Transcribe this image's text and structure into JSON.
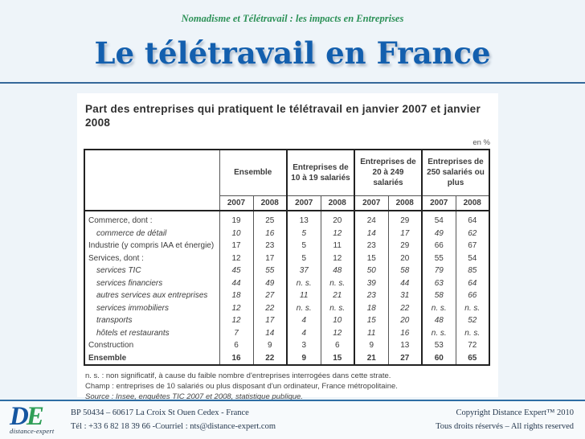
{
  "slide": {
    "subtitle": "Nomadisme et Télétravail : les impacts en Entreprises",
    "title": "Le télétravail en France"
  },
  "table_panel": {
    "title": "Part des entreprises qui pratiquent le télétravail en janvier 2007 et janvier 2008",
    "unit": "en %",
    "groups": [
      {
        "label": "Ensemble"
      },
      {
        "label": "Entreprises de 10 à 19 salariés"
      },
      {
        "label": "Entreprises de 20 à 249 salariés"
      },
      {
        "label": "Entreprises de 250 salariés ou plus"
      }
    ],
    "year_labels": [
      "2007",
      "2008"
    ],
    "rows": [
      {
        "label": "Commerce, dont :",
        "style": "normal",
        "values": [
          "19",
          "25",
          "13",
          "20",
          "24",
          "29",
          "54",
          "64"
        ]
      },
      {
        "label": "commerce de détail",
        "style": "italic",
        "values": [
          "10",
          "16",
          "5",
          "12",
          "14",
          "17",
          "49",
          "62"
        ]
      },
      {
        "label": "Industrie (y compris IAA et énergie)",
        "style": "normal",
        "values": [
          "17",
          "23",
          "5",
          "11",
          "23",
          "29",
          "66",
          "67"
        ]
      },
      {
        "label": "Services, dont :",
        "style": "normal",
        "values": [
          "12",
          "17",
          "5",
          "12",
          "15",
          "20",
          "55",
          "54"
        ]
      },
      {
        "label": "services TIC",
        "style": "italic",
        "values": [
          "45",
          "55",
          "37",
          "48",
          "50",
          "58",
          "79",
          "85"
        ]
      },
      {
        "label": "services financiers",
        "style": "italic",
        "values": [
          "44",
          "49",
          "n. s.",
          "n. s.",
          "39",
          "44",
          "63",
          "64"
        ]
      },
      {
        "label": "autres services aux entreprises",
        "style": "italic",
        "values": [
          "18",
          "27",
          "11",
          "21",
          "23",
          "31",
          "58",
          "66"
        ]
      },
      {
        "label": "services immobiliers",
        "style": "italic",
        "values": [
          "12",
          "22",
          "n. s.",
          "n. s.",
          "18",
          "22",
          "n. s.",
          "n. s."
        ]
      },
      {
        "label": "transports",
        "style": "italic",
        "values": [
          "12",
          "17",
          "4",
          "10",
          "15",
          "20",
          "48",
          "52"
        ]
      },
      {
        "label": "hôtels et restaurants",
        "style": "italic",
        "values": [
          "7",
          "14",
          "4",
          "12",
          "11",
          "16",
          "n. s.",
          "n. s."
        ]
      },
      {
        "label": "Construction",
        "style": "normal",
        "values": [
          "6",
          "9",
          "3",
          "6",
          "9",
          "13",
          "53",
          "72"
        ]
      },
      {
        "label": "Ensemble",
        "style": "bold",
        "values": [
          "16",
          "22",
          "9",
          "15",
          "21",
          "27",
          "60",
          "65"
        ]
      }
    ],
    "notes": [
      "n. s. : non significatif, à cause du faible nombre d'entreprises interrogées dans cette strate.",
      "Champ : entreprises de 10 salariés ou plus disposant d'un ordinateur, France métropolitaine.",
      "Source : Insee, enquêtes TIC 2007 et 2008, statistique publique."
    ]
  },
  "footer": {
    "logo": {
      "d": "D",
      "e": "E",
      "caption": "distance-expert"
    },
    "address_line1": "BP 50434 – 60617 La Croix St Ouen Cedex - France",
    "address_line2": "Tél : +33 6 82 18 39 66 -Courriel : nts@distance-expert.com",
    "copyright_line1": "Copyright Distance Expert™ 2010",
    "copyright_line2": "Tous droits réservés – All rights reserved"
  },
  "colors": {
    "title_blue": "#135fae",
    "subtitle_green": "#2c9157",
    "divider_blue": "#35689a",
    "footer_border_blue": "#2e6da4",
    "logo_blue": "#1556a0",
    "logo_green": "#2f9e57"
  }
}
